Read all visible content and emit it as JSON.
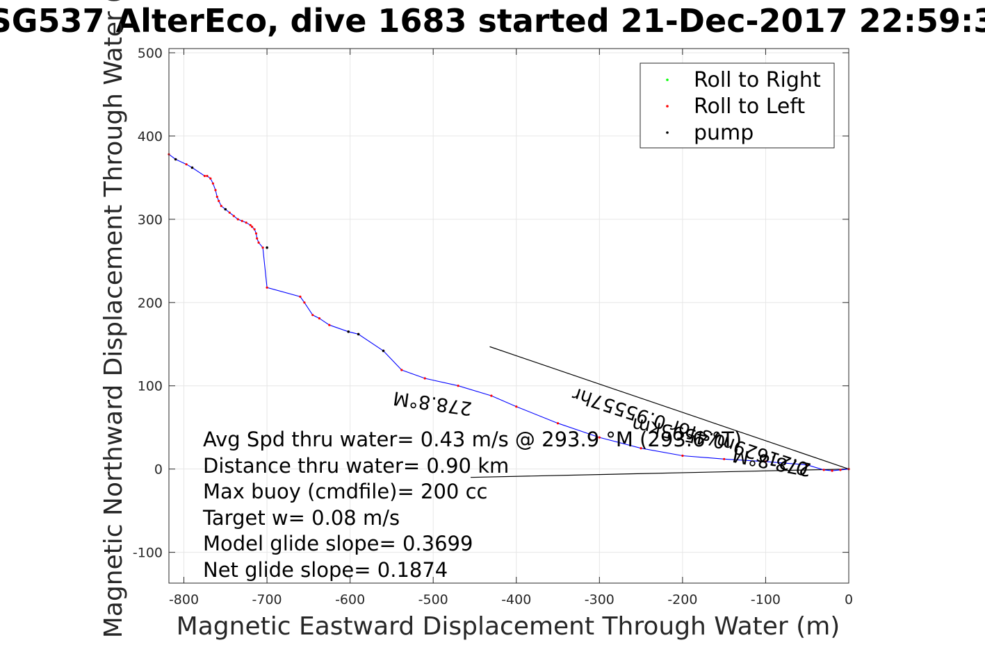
{
  "chart_data": {
    "type": "line",
    "title": "SG537 AlterEco, dive 1683 started 21-Dec-2017 22:59:3",
    "xlabel": "Magnetic Eastward Displacement Through Water (m)",
    "ylabel": "Magnetic Northward Displacement Through Water (",
    "xlim": [
      -818,
      0
    ],
    "ylim": [
      -137,
      505
    ],
    "xticks": [
      -800,
      -700,
      -600,
      -500,
      -400,
      -300,
      -200,
      -100,
      0
    ],
    "yticks": [
      -100,
      0,
      100,
      200,
      300,
      400,
      500
    ],
    "grid": true,
    "legend_position": "top-right",
    "legend": [
      {
        "label": "Roll to Right",
        "color": "#00ff00"
      },
      {
        "label": "Roll to Left",
        "color": "#ff0000"
      },
      {
        "label": "pump",
        "color": "#000000"
      }
    ],
    "series": [
      {
        "color": "#0000ff",
        "x": [
          0,
          -10,
          -20,
          -30,
          -50,
          -100,
          -150,
          -200,
          -250,
          -300,
          -350,
          -400,
          -430,
          -470,
          -510,
          -538,
          -560,
          -590,
          -602,
          -625,
          -637,
          -645,
          -655,
          -660,
          -700,
          -705,
          -710,
          -712,
          -713,
          -715,
          -718,
          -720,
          -725,
          -730,
          -735,
          -740,
          -745,
          -750,
          -755,
          -758,
          -760,
          -762,
          -765,
          -768,
          -772,
          -775,
          -790,
          -797,
          -810,
          -818
        ],
        "y": [
          0,
          -1,
          -2,
          -1,
          5,
          9,
          12,
          16,
          25,
          38,
          55,
          75,
          88,
          100,
          109,
          119,
          142,
          162,
          165,
          173,
          181,
          185,
          200,
          207,
          218,
          266,
          272,
          277,
          283,
          288,
          291,
          293,
          296,
          298,
          300,
          304,
          308,
          312,
          316,
          322,
          327,
          335,
          343,
          349,
          352,
          352,
          362,
          366,
          372,
          378
        ]
      }
    ],
    "pump_points": {
      "x": [
        -560,
        -590,
        -602,
        -700,
        -750,
        -790,
        -810
      ],
      "y": [
        142,
        162,
        165,
        266,
        312,
        362,
        372
      ]
    },
    "arrows": [
      {
        "label": "0.21629m/s for 0.95557hr",
        "color": "#000000",
        "from": [
          0,
          0
        ],
        "to": [
          -432,
          147
        ]
      },
      {
        "label": "0.4595km",
        "color": "#000000",
        "from": [
          0,
          0
        ],
        "to": [
          -455,
          -10
        ]
      }
    ],
    "rotated_labels": [
      "278.8°M",
      "0.21629m/s for 0.95557hr",
      "278.8°M",
      "0.4595km"
    ],
    "annotations": [
      "Avg Spd thru water=  0.43 m/s @ 293.9 °M (293.6 °T)",
      "Distance thru water=  0.90 km",
      "Max buoy (cmdfile)= 200 cc",
      "Target w= 0.08 m/s",
      "Model glide slope= 0.3699",
      "Net glide slope= 0.1874"
    ]
  }
}
